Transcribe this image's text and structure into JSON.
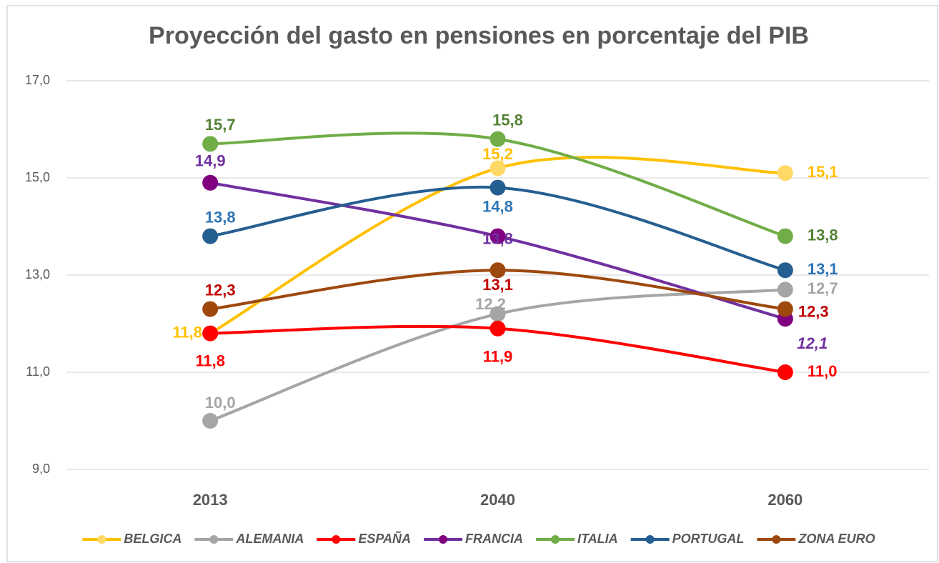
{
  "chart_data": {
    "type": "line",
    "title": "Proyección del gasto en pensiones en porcentaje del PIB",
    "categories": [
      "2013",
      "2040",
      "2060"
    ],
    "ylim": [
      9,
      17
    ],
    "yticks": [
      {
        "value": 9,
        "label": "9,0"
      },
      {
        "value": 11,
        "label": "11,0"
      },
      {
        "value": 13,
        "label": "13,0"
      },
      {
        "value": 15,
        "label": "15,0"
      },
      {
        "value": 17,
        "label": "17,0"
      }
    ],
    "grid": true,
    "legend": "bottom",
    "series": [
      {
        "name": "BELGICA",
        "color": "#ffc000",
        "marker_color": "#ffd966",
        "label_color": "#ffc000",
        "values": [
          11.8,
          15.2,
          15.1
        ],
        "value_labels": [
          "11,8",
          "15,2",
          "15,1"
        ]
      },
      {
        "name": "ALEMANIA",
        "color": "#a5a5a5",
        "marker_color": "#a5a5a5",
        "label_color": "#a5a5a5",
        "values": [
          10.0,
          12.2,
          12.7
        ],
        "value_labels": [
          "10,0",
          "12,2",
          "12,7"
        ]
      },
      {
        "name": "ESPAÑA",
        "color": "#ff0000",
        "marker_color": "#ff0000",
        "label_color": "#ff0000",
        "values": [
          11.8,
          11.9,
          11.0
        ],
        "value_labels": [
          "11,8",
          "11,9",
          "11,0"
        ]
      },
      {
        "name": "FRANCIA",
        "color": "#7030a0",
        "marker_color": "#800080",
        "label_color": "#7030a0",
        "values": [
          14.9,
          13.8,
          12.1
        ],
        "value_labels": [
          "14,9",
          "13,8",
          "12,1"
        ]
      },
      {
        "name": "ITALIA",
        "color": "#70ad47",
        "marker_color": "#70ad47",
        "label_color": "#548235",
        "values": [
          15.7,
          15.8,
          13.8
        ],
        "value_labels": [
          "15,7",
          "15,8",
          "13,8"
        ]
      },
      {
        "name": "PORTUGAL",
        "color": "#255e91",
        "marker_color": "#255e91",
        "label_color": "#2e75b6",
        "values": [
          13.8,
          14.8,
          13.1
        ],
        "value_labels": [
          "13,8",
          "14,8",
          "13,1"
        ]
      },
      {
        "name": "ZONA EURO",
        "color": "#9e480e",
        "marker_color": "#9e480e",
        "label_color": "#c00000",
        "values": [
          12.3,
          13.1,
          12.3
        ],
        "value_labels": [
          "12,3",
          "13,1",
          "12,3"
        ]
      }
    ]
  }
}
